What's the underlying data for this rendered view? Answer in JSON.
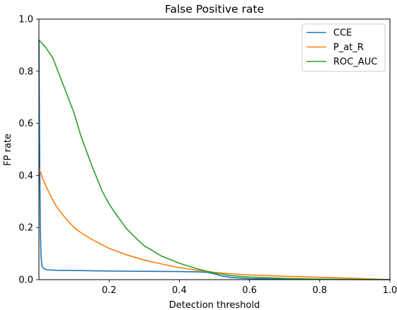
{
  "chart_data": {
    "type": "line",
    "title": "False Positive rate",
    "xlabel": "Detection threshold",
    "ylabel": "FP rate",
    "xlim": [
      0.0,
      1.0
    ],
    "ylim": [
      0.0,
      1.0
    ],
    "xticks": [
      0.2,
      0.4,
      0.6,
      0.8,
      1.0
    ],
    "xtick_labels": [
      "0.2",
      "0.4",
      "0.6",
      "0.8",
      "1.0"
    ],
    "yticks": [
      0.0,
      0.2,
      0.4,
      0.6,
      0.8,
      1.0
    ],
    "ytick_labels": [
      "0.0",
      "0.2",
      "0.4",
      "0.6",
      "0.8",
      "1.0"
    ],
    "grid": false,
    "legend_position": "top-right",
    "series": [
      {
        "name": "CCE",
        "color": "#1f77b4",
        "x": [
          0.0,
          0.002,
          0.004,
          0.006,
          0.008,
          0.01,
          0.015,
          0.02,
          0.03,
          0.05,
          0.1,
          0.2,
          0.3,
          0.4,
          0.45,
          0.48,
          0.5,
          0.52,
          0.55,
          0.6,
          0.7,
          0.8,
          0.9,
          1.0
        ],
        "y": [
          0.92,
          0.5,
          0.2,
          0.09,
          0.06,
          0.048,
          0.042,
          0.039,
          0.037,
          0.036,
          0.035,
          0.033,
          0.032,
          0.031,
          0.03,
          0.028,
          0.022,
          0.014,
          0.008,
          0.004,
          0.002,
          0.001,
          0.0005,
          0.0
        ]
      },
      {
        "name": "P_at_R",
        "color": "#ff7f0e",
        "x": [
          0.0,
          0.01,
          0.02,
          0.03,
          0.05,
          0.07,
          0.1,
          0.12,
          0.15,
          0.2,
          0.25,
          0.3,
          0.35,
          0.4,
          0.45,
          0.5,
          0.55,
          0.6,
          0.7,
          0.8,
          0.9,
          1.0
        ],
        "y": [
          0.43,
          0.39,
          0.36,
          0.33,
          0.28,
          0.245,
          0.2,
          0.18,
          0.155,
          0.12,
          0.095,
          0.075,
          0.06,
          0.046,
          0.036,
          0.028,
          0.022,
          0.018,
          0.013,
          0.009,
          0.005,
          0.0
        ]
      },
      {
        "name": "ROC_AUC",
        "color": "#2ca02c",
        "x": [
          0.0,
          0.02,
          0.04,
          0.06,
          0.08,
          0.1,
          0.12,
          0.15,
          0.18,
          0.2,
          0.22,
          0.25,
          0.28,
          0.3,
          0.35,
          0.4,
          0.45,
          0.5,
          0.55,
          0.6,
          0.7,
          0.8,
          0.9,
          1.0
        ],
        "y": [
          0.92,
          0.89,
          0.85,
          0.78,
          0.71,
          0.64,
          0.55,
          0.44,
          0.34,
          0.29,
          0.25,
          0.195,
          0.155,
          0.13,
          0.09,
          0.063,
          0.042,
          0.025,
          0.015,
          0.01,
          0.005,
          0.002,
          0.001,
          0.0
        ]
      }
    ]
  }
}
